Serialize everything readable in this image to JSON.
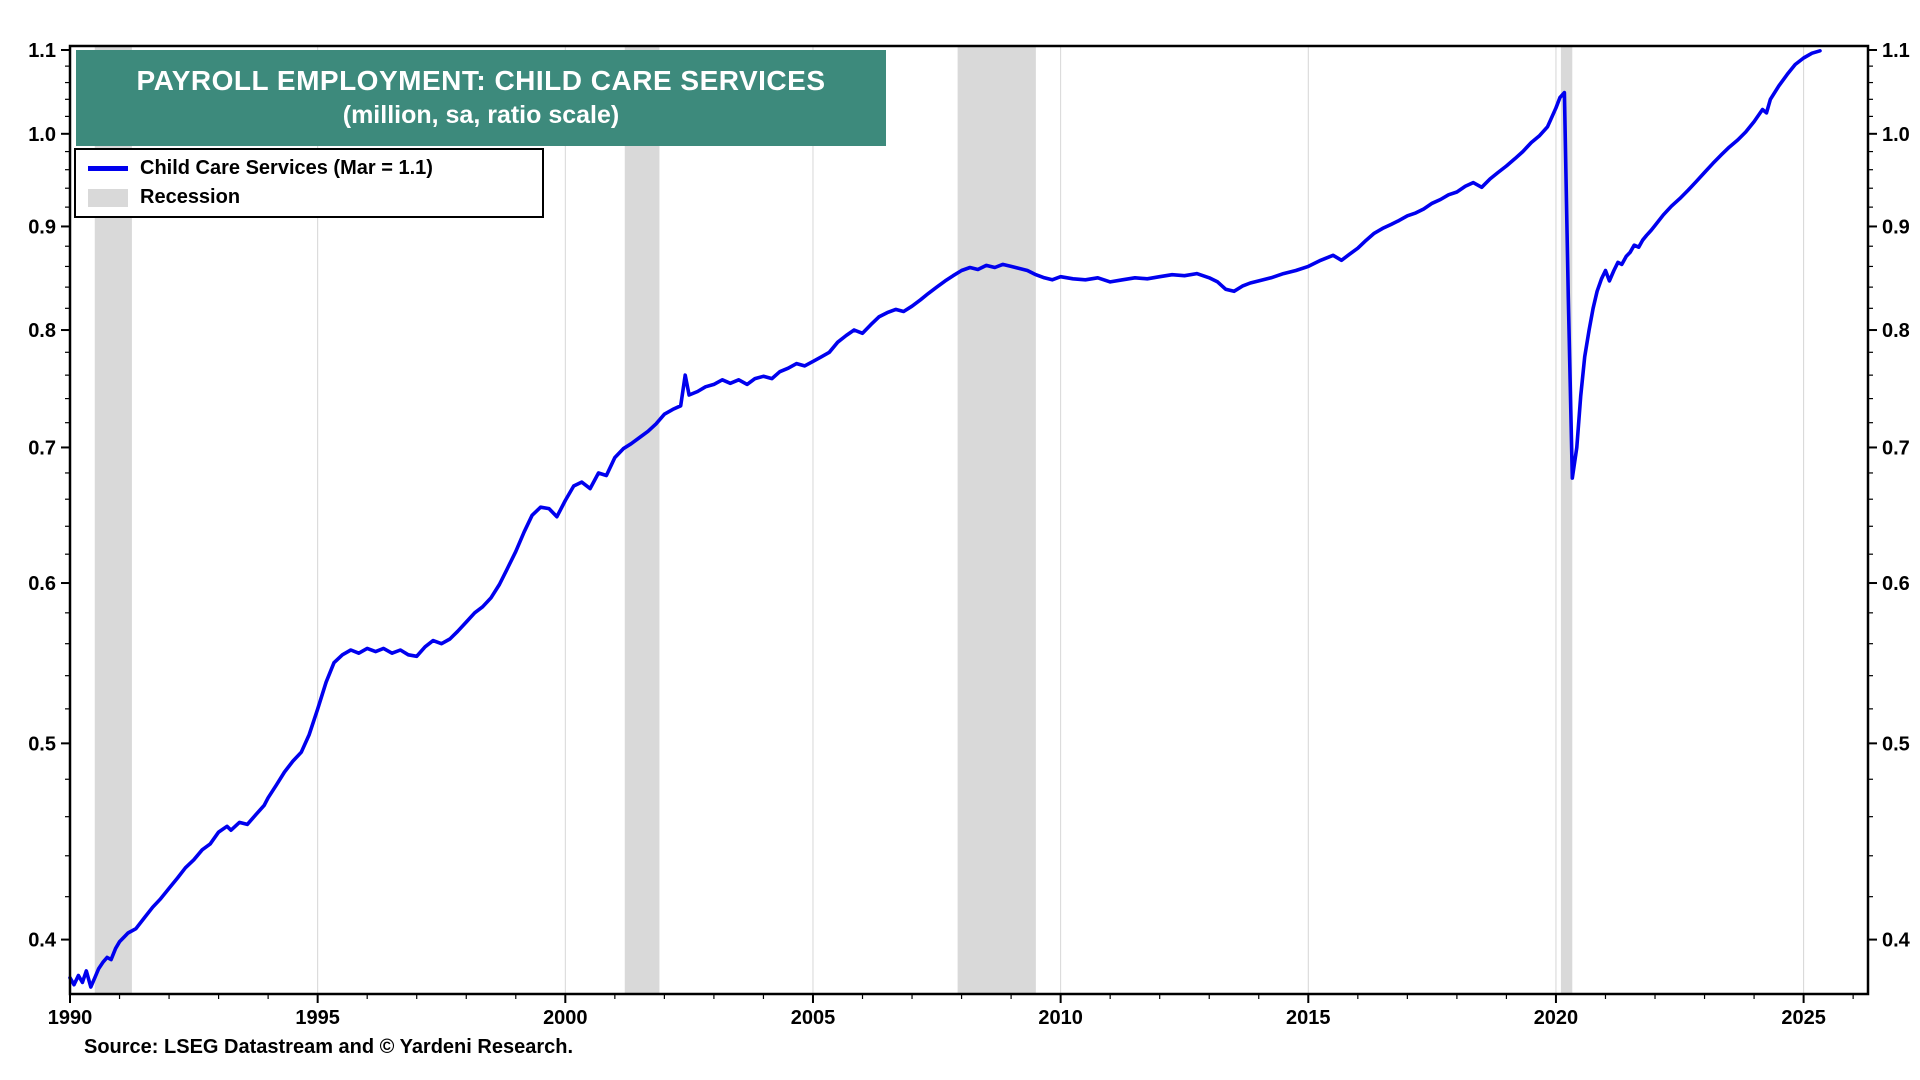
{
  "chart": {
    "title_line1": "PAYROLL EMPLOYMENT: CHILD CARE SERVICES",
    "title_line2": "(million, sa, ratio scale)",
    "title_bg": "#3d8a7c",
    "legend_series_label": "Child Care Services (Mar = 1.1)",
    "legend_recession_label": "Recession",
    "source": "Source: LSEG Datastream and © Yardeni Research."
  },
  "chart_data": {
    "type": "line",
    "title": "PAYROLL EMPLOYMENT: CHILD CARE SERVICES",
    "subtitle": "(million, sa, ratio scale)",
    "ylabel": "million, sa, ratio scale",
    "xlabel": "",
    "y_scale": "log",
    "xlim": [
      1990,
      2026.3
    ],
    "ylim": [
      0.376,
      1.105
    ],
    "x_ticks": [
      1990,
      1995,
      2000,
      2005,
      2010,
      2015,
      2020,
      2025
    ],
    "y_ticks": [
      0.4,
      0.5,
      0.6,
      0.7,
      0.8,
      0.9,
      1.0,
      1.1
    ],
    "x_minor_step": 1,
    "y_minor_step": 0.02,
    "grid": "vertical-major",
    "grid_color": "#d6d6d6",
    "frame_color": "#000000",
    "legend_position": "top-left",
    "recession_color": "#d9d9d9",
    "recessions": [
      [
        1990.5,
        1991.25
      ],
      [
        2001.2,
        2001.9
      ],
      [
        2007.92,
        2009.5
      ],
      [
        2020.1,
        2020.33
      ]
    ],
    "series": [
      {
        "name": "Child Care Services (Mar = 1.1)",
        "color": "#0000EE",
        "points": [
          [
            1990.0,
            0.383
          ],
          [
            1990.08,
            0.38
          ],
          [
            1990.17,
            0.384
          ],
          [
            1990.25,
            0.381
          ],
          [
            1990.33,
            0.386
          ],
          [
            1990.42,
            0.379
          ],
          [
            1990.5,
            0.383
          ],
          [
            1990.58,
            0.387
          ],
          [
            1990.67,
            0.39
          ],
          [
            1990.75,
            0.392
          ],
          [
            1990.83,
            0.391
          ],
          [
            1990.92,
            0.396
          ],
          [
            1991.0,
            0.399
          ],
          [
            1991.17,
            0.403
          ],
          [
            1991.33,
            0.405
          ],
          [
            1991.5,
            0.41
          ],
          [
            1991.67,
            0.415
          ],
          [
            1991.83,
            0.419
          ],
          [
            1992.0,
            0.424
          ],
          [
            1992.17,
            0.429
          ],
          [
            1992.33,
            0.434
          ],
          [
            1992.5,
            0.438
          ],
          [
            1992.67,
            0.443
          ],
          [
            1992.83,
            0.446
          ],
          [
            1993.0,
            0.452
          ],
          [
            1993.17,
            0.455
          ],
          [
            1993.25,
            0.453
          ],
          [
            1993.42,
            0.457
          ],
          [
            1993.58,
            0.456
          ],
          [
            1993.75,
            0.461
          ],
          [
            1993.92,
            0.466
          ],
          [
            1994.0,
            0.47
          ],
          [
            1994.17,
            0.477
          ],
          [
            1994.33,
            0.484
          ],
          [
            1994.5,
            0.49
          ],
          [
            1994.67,
            0.495
          ],
          [
            1994.83,
            0.505
          ],
          [
            1995.0,
            0.52
          ],
          [
            1995.17,
            0.536
          ],
          [
            1995.33,
            0.548
          ],
          [
            1995.5,
            0.553
          ],
          [
            1995.67,
            0.556
          ],
          [
            1995.83,
            0.554
          ],
          [
            1996.0,
            0.557
          ],
          [
            1996.17,
            0.555
          ],
          [
            1996.33,
            0.557
          ],
          [
            1996.5,
            0.554
          ],
          [
            1996.67,
            0.556
          ],
          [
            1996.83,
            0.553
          ],
          [
            1997.0,
            0.552
          ],
          [
            1997.17,
            0.558
          ],
          [
            1997.33,
            0.562
          ],
          [
            1997.5,
            0.56
          ],
          [
            1997.67,
            0.563
          ],
          [
            1997.83,
            0.568
          ],
          [
            1998.0,
            0.574
          ],
          [
            1998.17,
            0.58
          ],
          [
            1998.33,
            0.584
          ],
          [
            1998.5,
            0.59
          ],
          [
            1998.67,
            0.599
          ],
          [
            1998.83,
            0.61
          ],
          [
            1999.0,
            0.622
          ],
          [
            1999.17,
            0.636
          ],
          [
            1999.33,
            0.648
          ],
          [
            1999.5,
            0.654
          ],
          [
            1999.67,
            0.653
          ],
          [
            1999.83,
            0.647
          ],
          [
            2000.0,
            0.659
          ],
          [
            2000.17,
            0.67
          ],
          [
            2000.33,
            0.673
          ],
          [
            2000.5,
            0.668
          ],
          [
            2000.67,
            0.68
          ],
          [
            2000.83,
            0.678
          ],
          [
            2001.0,
            0.692
          ],
          [
            2001.17,
            0.699
          ],
          [
            2001.33,
            0.703
          ],
          [
            2001.5,
            0.708
          ],
          [
            2001.67,
            0.713
          ],
          [
            2001.83,
            0.719
          ],
          [
            2002.0,
            0.727
          ],
          [
            2002.17,
            0.731
          ],
          [
            2002.33,
            0.734
          ],
          [
            2002.42,
            0.76
          ],
          [
            2002.5,
            0.743
          ],
          [
            2002.67,
            0.746
          ],
          [
            2002.83,
            0.75
          ],
          [
            2003.0,
            0.752
          ],
          [
            2003.17,
            0.756
          ],
          [
            2003.33,
            0.753
          ],
          [
            2003.5,
            0.756
          ],
          [
            2003.67,
            0.752
          ],
          [
            2003.83,
            0.757
          ],
          [
            2004.0,
            0.759
          ],
          [
            2004.17,
            0.757
          ],
          [
            2004.33,
            0.763
          ],
          [
            2004.5,
            0.766
          ],
          [
            2004.67,
            0.77
          ],
          [
            2004.83,
            0.768
          ],
          [
            2005.0,
            0.772
          ],
          [
            2005.17,
            0.776
          ],
          [
            2005.33,
            0.78
          ],
          [
            2005.5,
            0.789
          ],
          [
            2005.67,
            0.795
          ],
          [
            2005.83,
            0.8
          ],
          [
            2006.0,
            0.797
          ],
          [
            2006.17,
            0.805
          ],
          [
            2006.33,
            0.812
          ],
          [
            2006.5,
            0.816
          ],
          [
            2006.67,
            0.819
          ],
          [
            2006.83,
            0.817
          ],
          [
            2007.0,
            0.822
          ],
          [
            2007.17,
            0.828
          ],
          [
            2007.33,
            0.834
          ],
          [
            2007.5,
            0.84
          ],
          [
            2007.67,
            0.846
          ],
          [
            2007.83,
            0.851
          ],
          [
            2008.0,
            0.856
          ],
          [
            2008.17,
            0.859
          ],
          [
            2008.33,
            0.857
          ],
          [
            2008.5,
            0.861
          ],
          [
            2008.67,
            0.859
          ],
          [
            2008.83,
            0.862
          ],
          [
            2009.0,
            0.86
          ],
          [
            2009.17,
            0.858
          ],
          [
            2009.33,
            0.856
          ],
          [
            2009.5,
            0.852
          ],
          [
            2009.67,
            0.849
          ],
          [
            2009.83,
            0.847
          ],
          [
            2010.0,
            0.85
          ],
          [
            2010.25,
            0.848
          ],
          [
            2010.5,
            0.847
          ],
          [
            2010.75,
            0.849
          ],
          [
            2011.0,
            0.845
          ],
          [
            2011.25,
            0.847
          ],
          [
            2011.5,
            0.849
          ],
          [
            2011.75,
            0.848
          ],
          [
            2012.0,
            0.85
          ],
          [
            2012.25,
            0.852
          ],
          [
            2012.5,
            0.851
          ],
          [
            2012.75,
            0.853
          ],
          [
            2013.0,
            0.849
          ],
          [
            2013.17,
            0.845
          ],
          [
            2013.33,
            0.838
          ],
          [
            2013.5,
            0.836
          ],
          [
            2013.67,
            0.841
          ],
          [
            2013.83,
            0.844
          ],
          [
            2014.0,
            0.846
          ],
          [
            2014.25,
            0.849
          ],
          [
            2014.5,
            0.853
          ],
          [
            2014.75,
            0.856
          ],
          [
            2015.0,
            0.86
          ],
          [
            2015.25,
            0.866
          ],
          [
            2015.5,
            0.871
          ],
          [
            2015.67,
            0.866
          ],
          [
            2015.83,
            0.872
          ],
          [
            2016.0,
            0.878
          ],
          [
            2016.17,
            0.886
          ],
          [
            2016.33,
            0.893
          ],
          [
            2016.5,
            0.898
          ],
          [
            2016.67,
            0.902
          ],
          [
            2016.83,
            0.906
          ],
          [
            2017.0,
            0.911
          ],
          [
            2017.17,
            0.914
          ],
          [
            2017.33,
            0.918
          ],
          [
            2017.5,
            0.924
          ],
          [
            2017.67,
            0.928
          ],
          [
            2017.83,
            0.933
          ],
          [
            2018.0,
            0.936
          ],
          [
            2018.17,
            0.942
          ],
          [
            2018.33,
            0.946
          ],
          [
            2018.5,
            0.941
          ],
          [
            2018.67,
            0.95
          ],
          [
            2018.83,
            0.957
          ],
          [
            2019.0,
            0.964
          ],
          [
            2019.17,
            0.972
          ],
          [
            2019.33,
            0.98
          ],
          [
            2019.5,
            0.99
          ],
          [
            2019.67,
            0.998
          ],
          [
            2019.83,
            1.008
          ],
          [
            2020.0,
            1.03
          ],
          [
            2020.08,
            1.042
          ],
          [
            2020.17,
            1.048
          ],
          [
            2020.25,
            0.83
          ],
          [
            2020.33,
            0.676
          ],
          [
            2020.42,
            0.7
          ],
          [
            2020.5,
            0.742
          ],
          [
            2020.58,
            0.776
          ],
          [
            2020.67,
            0.8
          ],
          [
            2020.75,
            0.82
          ],
          [
            2020.83,
            0.836
          ],
          [
            2020.92,
            0.848
          ],
          [
            2021.0,
            0.856
          ],
          [
            2021.08,
            0.846
          ],
          [
            2021.17,
            0.856
          ],
          [
            2021.25,
            0.864
          ],
          [
            2021.33,
            0.862
          ],
          [
            2021.42,
            0.87
          ],
          [
            2021.5,
            0.874
          ],
          [
            2021.58,
            0.881
          ],
          [
            2021.67,
            0.879
          ],
          [
            2021.75,
            0.886
          ],
          [
            2021.83,
            0.891
          ],
          [
            2021.92,
            0.896
          ],
          [
            2022.0,
            0.901
          ],
          [
            2022.17,
            0.912
          ],
          [
            2022.33,
            0.921
          ],
          [
            2022.5,
            0.929
          ],
          [
            2022.67,
            0.938
          ],
          [
            2022.83,
            0.947
          ],
          [
            2023.0,
            0.957
          ],
          [
            2023.17,
            0.967
          ],
          [
            2023.33,
            0.976
          ],
          [
            2023.5,
            0.985
          ],
          [
            2023.67,
            0.993
          ],
          [
            2023.83,
            1.002
          ],
          [
            2024.0,
            1.014
          ],
          [
            2024.17,
            1.028
          ],
          [
            2024.25,
            1.024
          ],
          [
            2024.33,
            1.04
          ],
          [
            2024.5,
            1.056
          ],
          [
            2024.67,
            1.07
          ],
          [
            2024.83,
            1.082
          ],
          [
            2025.0,
            1.09
          ],
          [
            2025.17,
            1.096
          ],
          [
            2025.33,
            1.099
          ]
        ]
      }
    ]
  }
}
